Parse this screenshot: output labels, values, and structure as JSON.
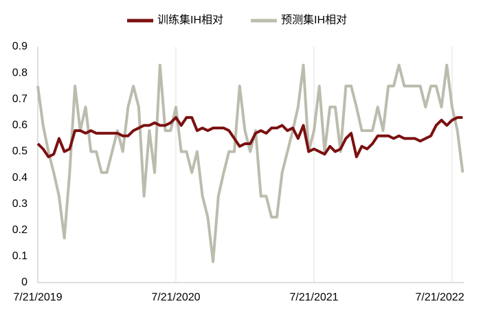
{
  "chart_data": {
    "type": "line",
    "categories": [
      "7/21/2019",
      null,
      null,
      null,
      null,
      null,
      null,
      null,
      null,
      null,
      null,
      null,
      null,
      null,
      null,
      null,
      null,
      null,
      null,
      null,
      null,
      null,
      null,
      null,
      null,
      null,
      "7/21/2020",
      null,
      null,
      null,
      null,
      null,
      null,
      null,
      null,
      null,
      null,
      null,
      null,
      null,
      null,
      null,
      null,
      null,
      null,
      null,
      null,
      null,
      null,
      null,
      null,
      null,
      "7/21/2021",
      null,
      null,
      null,
      null,
      null,
      null,
      null,
      null,
      null,
      null,
      null,
      null,
      null,
      null,
      null,
      null,
      null,
      null,
      null,
      null,
      null,
      null,
      null,
      null,
      null,
      "7/21/2022",
      null,
      null
    ],
    "series": [
      {
        "name": "训练集IH相对",
        "color": "#7b1010",
        "values": [
          0.53,
          0.51,
          0.48,
          0.49,
          0.55,
          0.5,
          0.51,
          0.58,
          0.58,
          0.57,
          0.58,
          0.57,
          0.57,
          0.57,
          0.57,
          0.57,
          0.56,
          0.56,
          0.58,
          0.59,
          0.6,
          0.6,
          0.61,
          0.6,
          0.6,
          0.61,
          0.63,
          0.6,
          0.63,
          0.63,
          0.58,
          0.59,
          0.58,
          0.59,
          0.59,
          0.59,
          0.58,
          0.55,
          0.52,
          0.53,
          0.53,
          0.57,
          0.58,
          0.57,
          0.59,
          0.59,
          0.6,
          0.58,
          0.59,
          0.55,
          0.6,
          0.5,
          0.51,
          0.5,
          0.49,
          0.52,
          0.5,
          0.51,
          0.55,
          0.57,
          0.48,
          0.52,
          0.51,
          0.53,
          0.56,
          0.56,
          0.56,
          0.55,
          0.56,
          0.55,
          0.55,
          0.55,
          0.54,
          0.55,
          0.56,
          0.6,
          0.62,
          0.6,
          0.62,
          0.63,
          0.63
        ]
      },
      {
        "name": "预测集IH相对",
        "color": "#bcbcae",
        "values": [
          0.75,
          0.6,
          0.5,
          0.42,
          0.33,
          0.17,
          0.42,
          0.75,
          0.58,
          0.67,
          0.5,
          0.5,
          0.42,
          0.42,
          0.5,
          0.58,
          0.5,
          0.67,
          0.75,
          0.67,
          0.33,
          0.58,
          0.42,
          0.83,
          0.58,
          0.58,
          0.67,
          0.5,
          0.5,
          0.42,
          0.5,
          0.33,
          0.25,
          0.08,
          0.33,
          0.42,
          0.5,
          0.5,
          0.75,
          0.58,
          0.5,
          0.58,
          0.33,
          0.33,
          0.25,
          0.25,
          0.42,
          0.5,
          0.58,
          0.67,
          0.83,
          0.5,
          0.58,
          0.75,
          0.5,
          0.67,
          0.67,
          0.5,
          0.75,
          0.75,
          0.67,
          0.58,
          0.58,
          0.58,
          0.67,
          0.58,
          0.75,
          0.75,
          0.83,
          0.75,
          0.75,
          0.75,
          0.75,
          0.67,
          0.75,
          0.75,
          0.67,
          0.83,
          0.67,
          0.58,
          0.42
        ]
      }
    ],
    "ylim": [
      0,
      0.9
    ],
    "yticks": [
      0,
      0.1,
      0.2,
      0.3,
      0.4,
      0.5,
      0.6,
      0.7,
      0.8,
      0.9
    ],
    "grid": true
  }
}
